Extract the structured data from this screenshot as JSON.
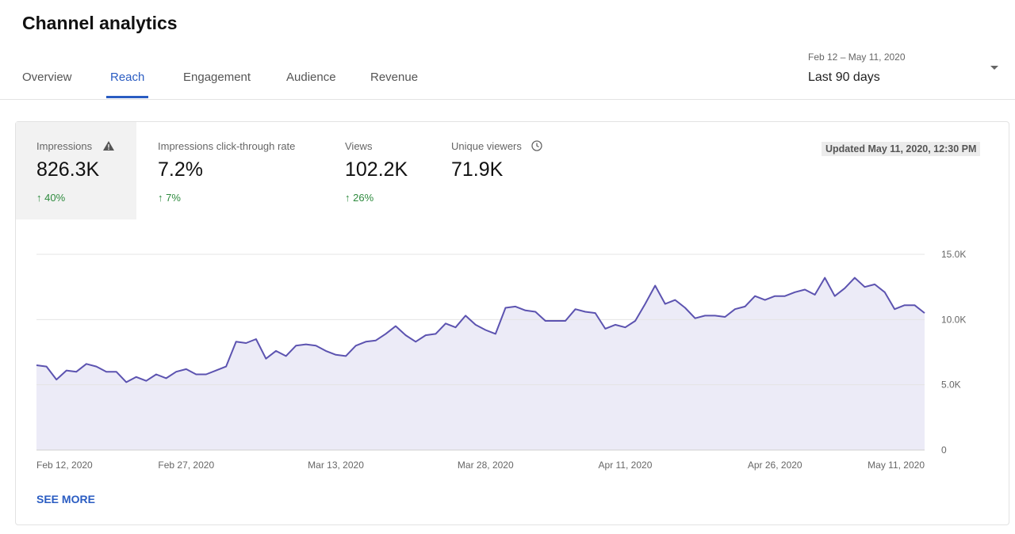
{
  "header": {
    "title": "Channel analytics"
  },
  "tabs": [
    {
      "label": "Overview",
      "active": false
    },
    {
      "label": "Reach",
      "active": true
    },
    {
      "label": "Engagement",
      "active": false
    },
    {
      "label": "Audience",
      "active": false
    },
    {
      "label": "Revenue",
      "active": false
    }
  ],
  "date_range": {
    "range": "Feb 12 – May 11, 2020",
    "selected": "Last 90 days"
  },
  "metrics": [
    {
      "label": "Impressions",
      "value": "826.3K",
      "delta": "40%",
      "icon": "warning-icon",
      "selected": true
    },
    {
      "label": "Impressions click-through rate",
      "value": "7.2%",
      "delta": "7%"
    },
    {
      "label": "Views",
      "value": "102.2K",
      "delta": "26%"
    },
    {
      "label": "Unique viewers",
      "value": "71.9K",
      "icon": "clock-icon"
    }
  ],
  "updated": "Updated May 11, 2020, 12:30 PM",
  "see_more": "SEE MORE",
  "colors": {
    "accent": "#2a5cc2",
    "line": "#5c53b0",
    "fill": "#ecebf7",
    "positive": "#2e8b3e"
  },
  "chart_data": {
    "type": "area",
    "x_range": [
      "Feb 12, 2020",
      "May 11, 2020"
    ],
    "x_tick_labels": [
      "Feb 12, 2020",
      "Feb 27, 2020",
      "Mar 13, 2020",
      "Mar 28, 2020",
      "Apr 11, 2020",
      "Apr 26, 2020",
      "May 11, 2020"
    ],
    "x_tick_index": [
      0,
      15,
      30,
      45,
      59,
      74,
      89
    ],
    "y_ticks": [
      0,
      5000,
      10000,
      15000
    ],
    "y_tick_labels": [
      "0",
      "5.0K",
      "10.0K",
      "15.0K"
    ],
    "ylim": [
      0,
      15000
    ],
    "grid": true,
    "values": [
      6500,
      6400,
      5400,
      6100,
      6000,
      6600,
      6400,
      6000,
      6000,
      5200,
      5600,
      5300,
      5800,
      5500,
      6000,
      6200,
      5800,
      5800,
      6100,
      6400,
      8300,
      8200,
      8500,
      7000,
      7600,
      7200,
      8000,
      8100,
      8000,
      7600,
      7300,
      7200,
      8000,
      8300,
      8400,
      8900,
      9500,
      8800,
      8300,
      8800,
      8900,
      9700,
      9400,
      10300,
      9600,
      9200,
      8900,
      10900,
      11000,
      10700,
      10600,
      9900,
      9900,
      9900,
      10800,
      10600,
      10500,
      9300,
      9600,
      9400,
      9900,
      11200,
      12600,
      11200,
      11500,
      10900,
      10100,
      10300,
      10300,
      10200,
      10800,
      11000,
      11800,
      11500,
      11800,
      11800,
      12100,
      12300,
      11900,
      13200,
      11800,
      12400,
      13200,
      12500,
      12700,
      12100,
      10800,
      11100,
      11100,
      10500
    ]
  }
}
